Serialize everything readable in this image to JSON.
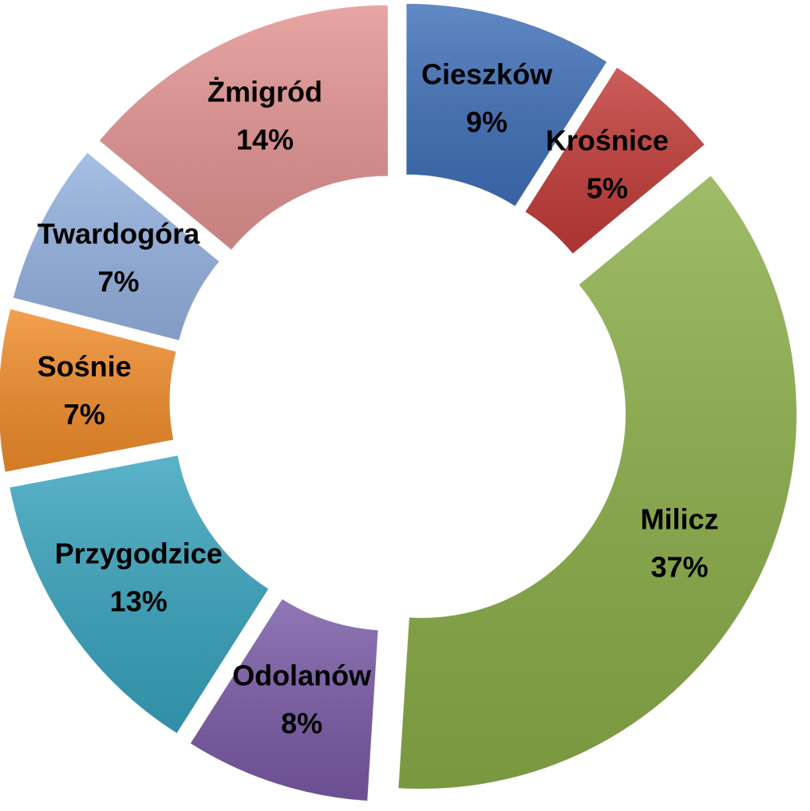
{
  "chart_data": {
    "type": "donut",
    "categories": [
      "Cieszków",
      "Krośnice",
      "Milicz",
      "Odolanów",
      "Przygodzice",
      "Sośnie",
      "Twardogóra",
      "Żmigród"
    ],
    "values": [
      9,
      5,
      37,
      8,
      13,
      7,
      7,
      14
    ],
    "value_labels": [
      "9%",
      "5%",
      "37%",
      "8%",
      "13%",
      "7%",
      "7%",
      "14%"
    ],
    "colors": [
      "#3f6fb7",
      "#c23b38",
      "#8aad47",
      "#7a5aa6",
      "#37a3bd",
      "#f08c2a",
      "#94b2e0",
      "#e29391"
    ]
  }
}
